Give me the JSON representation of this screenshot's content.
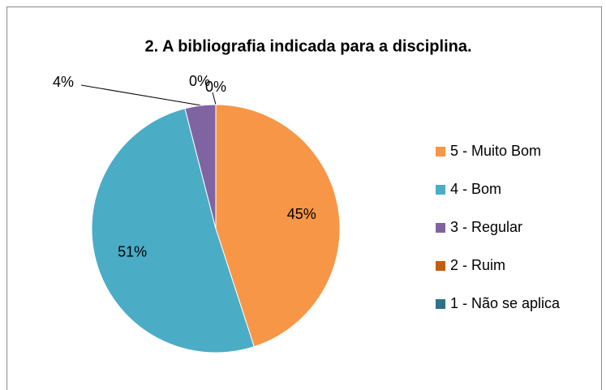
{
  "chart_data": {
    "type": "pie",
    "title": "2. A bibliografia indicada para a disciplina.",
    "categories": [
      "5 - Muito Bom",
      "4 - Bom",
      "3 - Regular",
      "2 - Ruim",
      "1 - Não se aplica"
    ],
    "values": [
      45,
      51,
      4,
      0,
      0
    ],
    "value_labels": [
      "45%",
      "51%",
      "4%",
      "0%",
      "0%"
    ],
    "colors": [
      "#F79646",
      "#4BACC6",
      "#8064A2",
      "#C0600F",
      "#31708A"
    ],
    "legend": "right"
  }
}
